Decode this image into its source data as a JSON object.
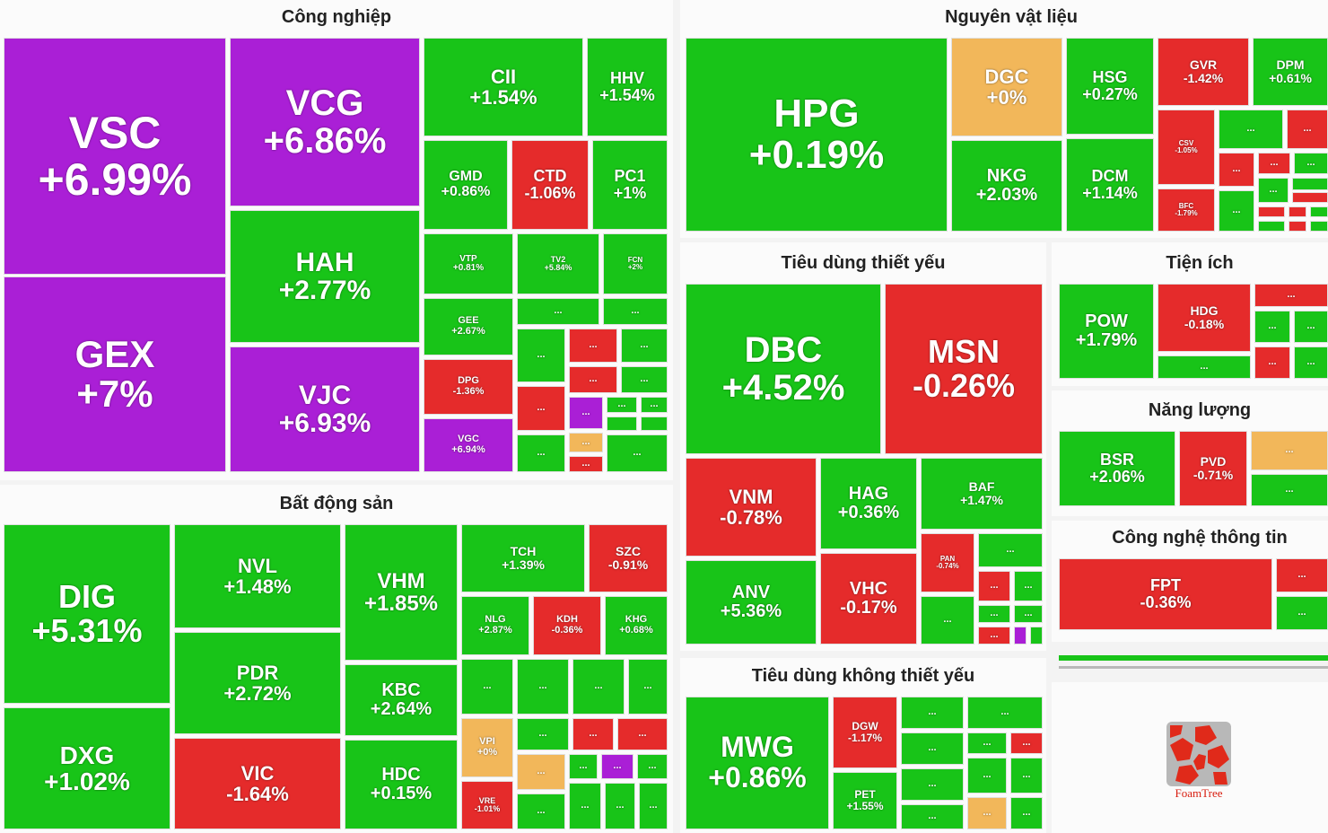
{
  "colors": {
    "up": "#18c418",
    "down": "#e52b2b",
    "ceiling": "#aa1fd6",
    "flat": "#f2b75a",
    "title": "#222222"
  },
  "chart_data": {
    "type": "treemap",
    "unit": "%",
    "sectors": [
      {
        "name": "Công nghiệp",
        "stocks": [
          {
            "ticker": "VSC",
            "change": "+6.99%",
            "color": "ceiling"
          },
          {
            "ticker": "GEX",
            "change": "+7%",
            "color": "ceiling"
          },
          {
            "ticker": "VCG",
            "change": "+6.86%",
            "color": "ceiling"
          },
          {
            "ticker": "HAH",
            "change": "+2.77%",
            "color": "up"
          },
          {
            "ticker": "VJC",
            "change": "+6.93%",
            "color": "ceiling"
          },
          {
            "ticker": "CII",
            "change": "+1.54%",
            "color": "up"
          },
          {
            "ticker": "HHV",
            "change": "+1.54%",
            "color": "up"
          },
          {
            "ticker": "GMD",
            "change": "+0.86%",
            "color": "up"
          },
          {
            "ticker": "CTD",
            "change": "-1.06%",
            "color": "down"
          },
          {
            "ticker": "PC1",
            "change": "+1%",
            "color": "up"
          },
          {
            "ticker": "VTP",
            "change": "+0.81%",
            "color": "up"
          },
          {
            "ticker": "TV2",
            "change": "+5.84%",
            "color": "up"
          },
          {
            "ticker": "FCN",
            "change": "+2%",
            "color": "up"
          },
          {
            "ticker": "GEE",
            "change": "+2.67%",
            "color": "up"
          },
          {
            "ticker": "DPG",
            "change": "-1.36%",
            "color": "down"
          },
          {
            "ticker": "VGC",
            "change": "+6.94%",
            "color": "ceiling"
          }
        ]
      },
      {
        "name": "Bất động sản",
        "stocks": [
          {
            "ticker": "DIG",
            "change": "+5.31%",
            "color": "up"
          },
          {
            "ticker": "DXG",
            "change": "+1.02%",
            "color": "up"
          },
          {
            "ticker": "NVL",
            "change": "+1.48%",
            "color": "up"
          },
          {
            "ticker": "PDR",
            "change": "+2.72%",
            "color": "up"
          },
          {
            "ticker": "VIC",
            "change": "-1.64%",
            "color": "down"
          },
          {
            "ticker": "VHM",
            "change": "+1.85%",
            "color": "up"
          },
          {
            "ticker": "KBC",
            "change": "+2.64%",
            "color": "up"
          },
          {
            "ticker": "HDC",
            "change": "+0.15%",
            "color": "up"
          },
          {
            "ticker": "TCH",
            "change": "+1.39%",
            "color": "up"
          },
          {
            "ticker": "SZC",
            "change": "-0.91%",
            "color": "down"
          },
          {
            "ticker": "NLG",
            "change": "+2.87%",
            "color": "up"
          },
          {
            "ticker": "KDH",
            "change": "-0.36%",
            "color": "down"
          },
          {
            "ticker": "KHG",
            "change": "+0.68%",
            "color": "up"
          },
          {
            "ticker": "VPI",
            "change": "+0%",
            "color": "flat"
          },
          {
            "ticker": "VRE",
            "change": "-1.01%",
            "color": "down"
          }
        ]
      },
      {
        "name": "Nguyên vật liệu",
        "stocks": [
          {
            "ticker": "HPG",
            "change": "+0.19%",
            "color": "up"
          },
          {
            "ticker": "DGC",
            "change": "+0%",
            "color": "flat"
          },
          {
            "ticker": "NKG",
            "change": "+2.03%",
            "color": "up"
          },
          {
            "ticker": "HSG",
            "change": "+0.27%",
            "color": "up"
          },
          {
            "ticker": "DCM",
            "change": "+1.14%",
            "color": "up"
          },
          {
            "ticker": "GVR",
            "change": "-1.42%",
            "color": "down"
          },
          {
            "ticker": "DPM",
            "change": "+0.61%",
            "color": "up"
          },
          {
            "ticker": "CSV",
            "change": "-1.05%",
            "color": "down"
          },
          {
            "ticker": "BFC",
            "change": "-1.79%",
            "color": "down"
          }
        ]
      },
      {
        "name": "Tiêu dùng thiết yếu",
        "stocks": [
          {
            "ticker": "DBC",
            "change": "+4.52%",
            "color": "up"
          },
          {
            "ticker": "MSN",
            "change": "-0.26%",
            "color": "down"
          },
          {
            "ticker": "VNM",
            "change": "-0.78%",
            "color": "down"
          },
          {
            "ticker": "HAG",
            "change": "+0.36%",
            "color": "up"
          },
          {
            "ticker": "BAF",
            "change": "+1.47%",
            "color": "up"
          },
          {
            "ticker": "ANV",
            "change": "+5.36%",
            "color": "up"
          },
          {
            "ticker": "VHC",
            "change": "-0.17%",
            "color": "down"
          },
          {
            "ticker": "PAN",
            "change": "-0.74%",
            "color": "down"
          }
        ]
      },
      {
        "name": "Tiêu dùng không thiết yếu",
        "stocks": [
          {
            "ticker": "MWG",
            "change": "+0.86%",
            "color": "up"
          },
          {
            "ticker": "DGW",
            "change": "-1.17%",
            "color": "down"
          },
          {
            "ticker": "PET",
            "change": "+1.55%",
            "color": "up"
          }
        ]
      },
      {
        "name": "Tiện ích",
        "stocks": [
          {
            "ticker": "POW",
            "change": "+1.79%",
            "color": "up"
          },
          {
            "ticker": "HDG",
            "change": "-0.18%",
            "color": "down"
          }
        ]
      },
      {
        "name": "Năng lượng",
        "stocks": [
          {
            "ticker": "BSR",
            "change": "+2.06%",
            "color": "up"
          },
          {
            "ticker": "PVD",
            "change": "-0.71%",
            "color": "down"
          }
        ]
      },
      {
        "name": "Công nghệ thông tin",
        "stocks": [
          {
            "ticker": "FPT",
            "change": "-0.36%",
            "color": "down"
          }
        ]
      }
    ]
  },
  "ellipsis": "...",
  "logo_text": "FoamTree"
}
